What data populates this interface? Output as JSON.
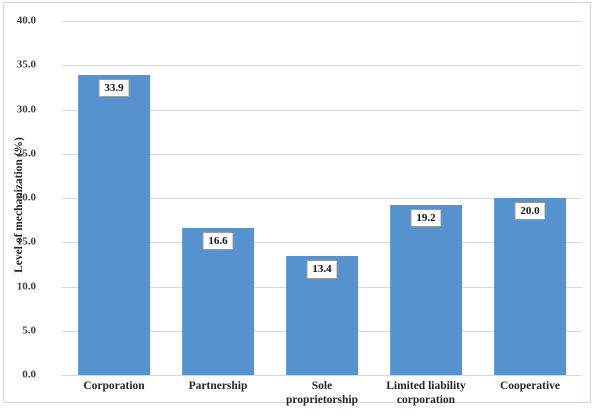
{
  "chart_data": {
    "type": "bar",
    "title": "",
    "xlabel": "",
    "ylabel": "Level of mechanization (%)",
    "categories": [
      "Corporation",
      "Partnership",
      "Sole proprietorship",
      "Limited liability corporation",
      "Cooperative"
    ],
    "values": [
      33.9,
      16.6,
      13.4,
      19.2,
      20.0
    ],
    "value_labels": [
      "33.9",
      "16.6",
      "13.4",
      "19.2",
      "20.0"
    ],
    "ylim": [
      0,
      40
    ],
    "ytick_step": 5,
    "ytick_labels": [
      "0.0",
      "5.0",
      "10.0",
      "15.0",
      "20.0",
      "25.0",
      "30.0",
      "35.0",
      "40.0"
    ],
    "grid": true,
    "legend_position": "none",
    "colors": {
      "bar_fill": "#5592ce",
      "gridline": "#d9d9d9",
      "axis_line": "#d9d9d9",
      "ytick_text": "#404040",
      "category_text": "#262626",
      "value_label_text": "#111111",
      "value_label_border": "#9a9a9a",
      "value_label_background": "#ffffff",
      "frame_border": "#ccd7e3",
      "background": "#ffffff"
    }
  }
}
